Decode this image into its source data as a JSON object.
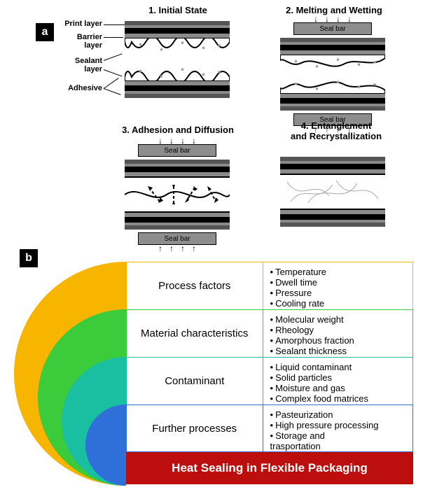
{
  "badges": {
    "a": "a",
    "b": "b"
  },
  "stages": {
    "s1": {
      "title": "1. Initial State"
    },
    "s2": {
      "title": "2. Melting and Wetting"
    },
    "s3": {
      "title": "3. Adhesion and Diffusion"
    },
    "s4": {
      "title": "4. Entanglement\nand Recrystallization"
    }
  },
  "seal_bar_label": "Seal bar",
  "layer_labels": {
    "print": "Print layer",
    "barrier": "Barrier\nlayer",
    "sealant": "Sealant\nlayer",
    "adhesive": "Adhesive"
  },
  "partB": {
    "rings": [
      {
        "color": "#f7b500"
      },
      {
        "color": "#3bcb3b"
      },
      {
        "color": "#1abfa2"
      },
      {
        "color": "#2e6fd9"
      }
    ],
    "rows": [
      {
        "label": "Process factors",
        "border": "#f7b500",
        "items": [
          "Temperature",
          "Dwell time",
          "Pressure",
          "Cooling rate"
        ]
      },
      {
        "label": "Material characteristics",
        "border": "#3bcb3b",
        "items": [
          "Molecular weight",
          "Rheology",
          "Amorphous fraction",
          "Sealant thickness"
        ]
      },
      {
        "label": "Contaminant",
        "border": "#1abfa2",
        "items": [
          "Liquid contaminant",
          "Solid particles",
          "Moisture and gas",
          "Complex food matrices"
        ]
      },
      {
        "label": "Further processes",
        "border": "#2e6fd9",
        "items": [
          "Pasteurization",
          "High pressure processing",
          "Storage and\ntrasportation"
        ]
      }
    ],
    "footer": {
      "label": "Heat Sealing in Flexible Packaging",
      "bg": "#bd0e0e"
    }
  },
  "colors": {
    "grey_light": "#8d8d8d",
    "grey_mid": "#555",
    "black": "#000",
    "white": "#fff"
  }
}
